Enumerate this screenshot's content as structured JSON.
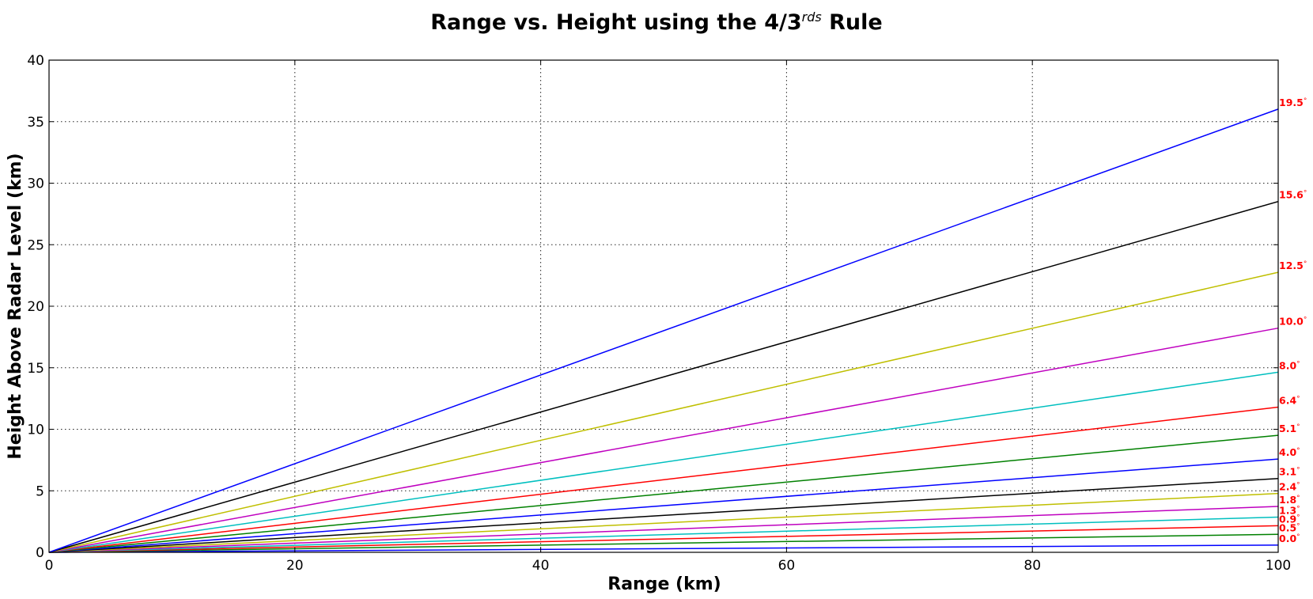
{
  "chart_data": {
    "type": "line",
    "title_main": "Range vs. Height using the 4/3",
    "title_sup": "rds",
    "title_end": " Rule",
    "xlabel": "Range (km)",
    "ylabel": "Height Above Radar Level (km)",
    "xlim": [
      0,
      100
    ],
    "ylim": [
      0,
      40
    ],
    "xticks": [
      0,
      20,
      40,
      60,
      80,
      100
    ],
    "yticks": [
      0,
      5,
      10,
      15,
      20,
      25,
      30,
      35,
      40
    ],
    "grid": true,
    "label_color": "#ff0000",
    "degree_symbol": "°",
    "x": [
      0,
      100
    ],
    "series": [
      {
        "label": "0.0",
        "color": "#0000ff",
        "values": [
          0,
          0.59
        ]
      },
      {
        "label": "0.5",
        "color": "#008000",
        "values": [
          0,
          1.46
        ]
      },
      {
        "label": "0.9",
        "color": "#ff0000",
        "values": [
          0,
          2.16
        ]
      },
      {
        "label": "1.3",
        "color": "#00bfbf",
        "values": [
          0,
          2.86
        ]
      },
      {
        "label": "1.8",
        "color": "#bf00bf",
        "values": [
          0,
          3.73
        ]
      },
      {
        "label": "2.4",
        "color": "#bfbf00",
        "values": [
          0,
          4.78
        ]
      },
      {
        "label": "3.1",
        "color": "#000000",
        "values": [
          0,
          6.0
        ]
      },
      {
        "label": "4.0",
        "color": "#0000ff",
        "values": [
          0,
          7.58
        ]
      },
      {
        "label": "5.1",
        "color": "#008000",
        "values": [
          0,
          9.51
        ]
      },
      {
        "label": "6.4",
        "color": "#ff0000",
        "values": [
          0,
          11.8
        ]
      },
      {
        "label": "8.0",
        "color": "#00bfbf",
        "values": [
          0,
          14.64
        ]
      },
      {
        "label": "10.0",
        "color": "#bf00bf",
        "values": [
          0,
          18.22
        ]
      },
      {
        "label": "12.5",
        "color": "#bfbf00",
        "values": [
          0,
          22.76
        ]
      },
      {
        "label": "15.6",
        "color": "#000000",
        "values": [
          0,
          28.51
        ]
      },
      {
        "label": "19.5",
        "color": "#0000ff",
        "values": [
          0,
          36.02
        ]
      }
    ]
  }
}
